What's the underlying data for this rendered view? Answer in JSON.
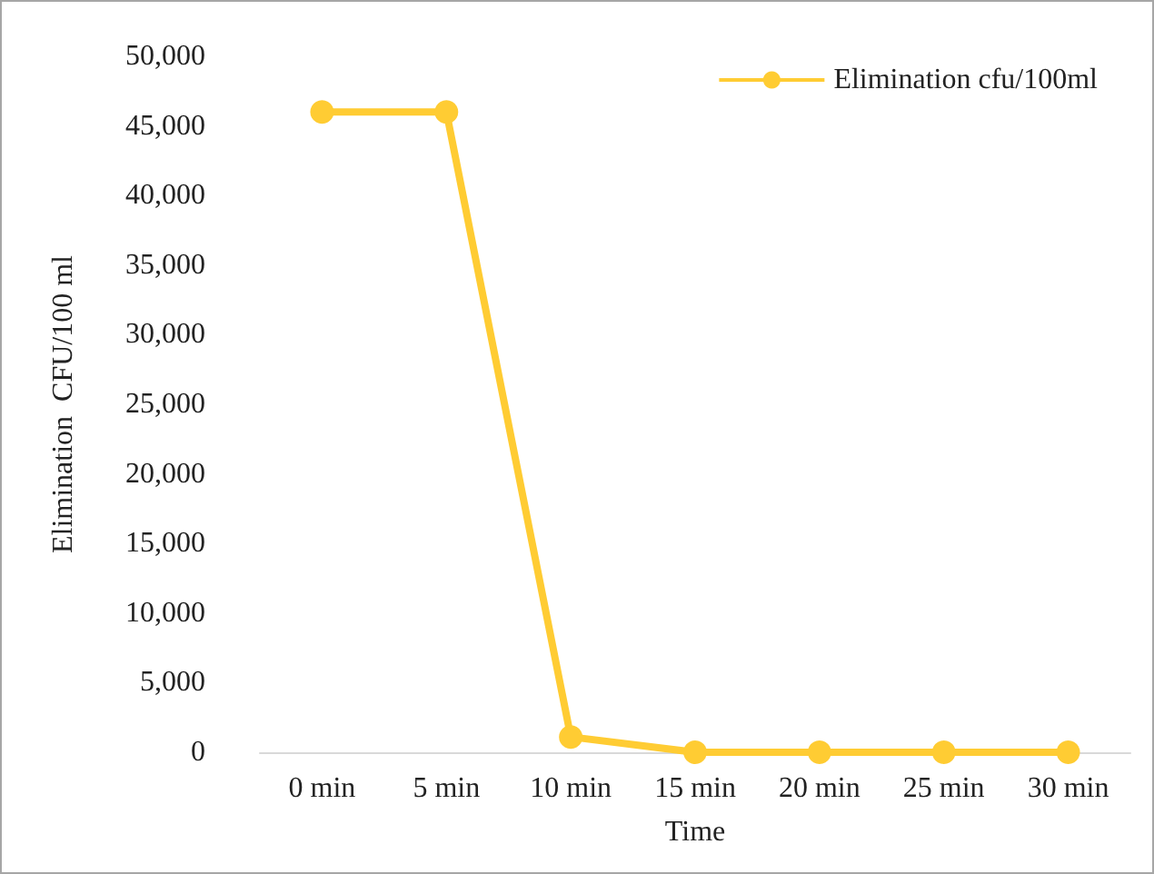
{
  "chart_data": {
    "type": "line",
    "xlabel": "Time",
    "ylabel": "Elimination  CFU/100 ml",
    "categories": [
      "0 min",
      "5 min",
      "10 min",
      "15 min",
      "20 min",
      "25 min",
      "30 min"
    ],
    "series": [
      {
        "name": "Elimination cfu/100ml",
        "color": "#ffcc33",
        "values": [
          46000,
          46000,
          1100,
          0,
          0,
          0,
          0
        ]
      }
    ],
    "ylim": [
      0,
      50000
    ],
    "yticks": [
      0,
      {
        "value": 5000,
        "label": "5,000"
      },
      {
        "value": 10000,
        "label": "10,000"
      },
      {
        "value": 15000,
        "label": "15,000"
      },
      {
        "value": 20000,
        "label": "20,000"
      },
      {
        "value": 25000,
        "label": "25,000"
      },
      {
        "value": 30000,
        "label": "30,000"
      },
      {
        "value": 35000,
        "label": "35,000"
      },
      {
        "value": 40000,
        "label": "40,000"
      },
      {
        "value": 45000,
        "label": "45,000"
      },
      {
        "value": 50000,
        "label": "50,000"
      }
    ],
    "grid": false,
    "legend": "top right",
    "marker": "circle",
    "line_style": "solid"
  }
}
